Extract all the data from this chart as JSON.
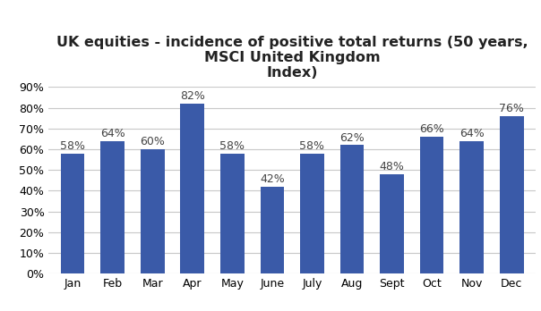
{
  "title": "UK equities - incidence of positive total returns (50 years,\nMSCI United Kingdom\nIndex)",
  "categories": [
    "Jan",
    "Feb",
    "Mar",
    "Apr",
    "May",
    "June",
    "July",
    "Aug",
    "Sept",
    "Oct",
    "Nov",
    "Dec"
  ],
  "values": [
    58,
    64,
    60,
    82,
    58,
    42,
    58,
    62,
    48,
    66,
    64,
    76
  ],
  "bar_color": "#3A5AA8",
  "background_color": "#FFFFFF",
  "ylim": [
    0,
    90
  ],
  "yticks": [
    0,
    10,
    20,
    30,
    40,
    50,
    60,
    70,
    80,
    90
  ],
  "grid_color": "#C8C8C8",
  "title_fontsize": 11.5,
  "tick_fontsize": 9,
  "label_fontsize": 9
}
